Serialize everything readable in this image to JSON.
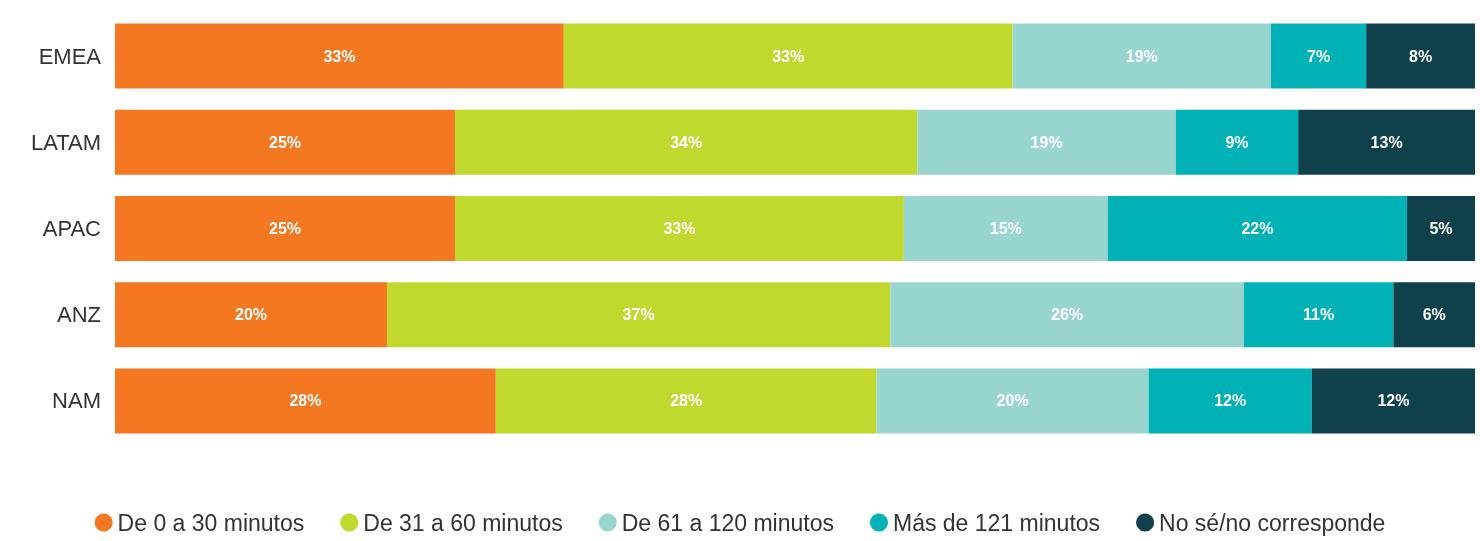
{
  "chart_data": {
    "type": "bar",
    "orientation": "horizontal",
    "stacked": true,
    "categories": [
      "EMEA",
      "LATAM",
      "APAC",
      "ANZ",
      "NAM"
    ],
    "xlim": [
      0,
      100
    ],
    "tick_labels": "y",
    "grid": false,
    "legend": "bottom",
    "series": [
      {
        "name": "De 0 a 30 minutos",
        "color": "#f47721",
        "values": [
          33,
          25,
          25,
          20,
          28
        ],
        "value_labels": [
          "33%",
          "25%",
          "25%",
          "20%",
          "28%"
        ]
      },
      {
        "name": "De 31 a 60 minutos",
        "color": "#c1d82f",
        "values": [
          33,
          34,
          33,
          37,
          28
        ],
        "value_labels": [
          "33%",
          "34%",
          "33%",
          "37%",
          "28%"
        ]
      },
      {
        "name": "De 61 a 120 minutos",
        "color": "#98d5ce",
        "values": [
          19,
          19,
          15,
          26,
          20
        ],
        "value_labels": [
          "19%",
          "19%",
          "15%",
          "26%",
          "20%"
        ]
      },
      {
        "name": "Más de 121 minutos",
        "color": "#00b2b6",
        "values": [
          7,
          9,
          22,
          11,
          12
        ],
        "value_labels": [
          "7%",
          "9%",
          "22%",
          "11%",
          "12%"
        ]
      },
      {
        "name": "No sé/no corresponde",
        "color": "#0f414c",
        "values": [
          8,
          13,
          5,
          6,
          12
        ],
        "value_labels": [
          "8%",
          "13%",
          "5%",
          "6%",
          "12%"
        ]
      }
    ]
  }
}
